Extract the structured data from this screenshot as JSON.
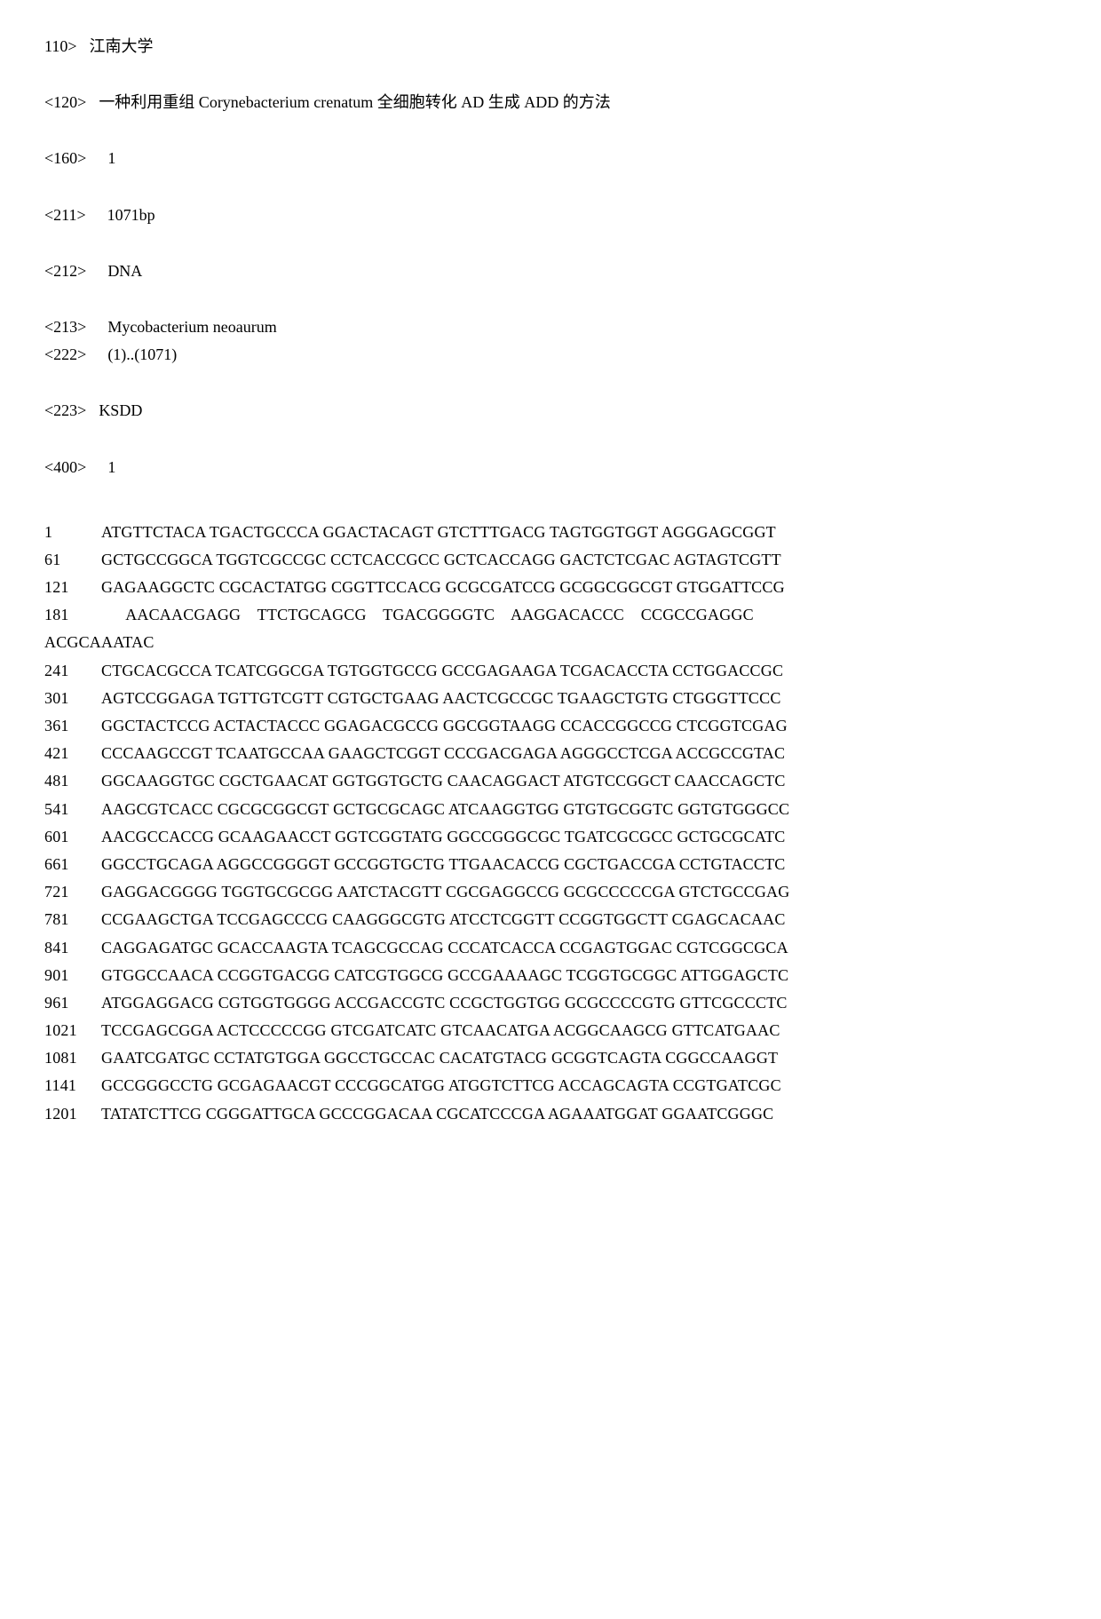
{
  "headers": {
    "h110": {
      "tag": "110>",
      "value": "江南大学"
    },
    "h120": {
      "tag": "<120>",
      "value": "一种利用重组 Corynebacterium crenatum 全细胞转化 AD 生成 ADD 的方法"
    },
    "h160": {
      "tag": "<160>",
      "value": "1"
    },
    "h211": {
      "tag": "<211>",
      "value": "1071bp"
    },
    "h212": {
      "tag": "<212>",
      "value": "DNA"
    },
    "h213": {
      "tag": "<213>",
      "value": "Mycobacterium neoaurum"
    },
    "h222": {
      "tag": "<222>",
      "value": "(1)..(1071)"
    },
    "h223": {
      "tag": "<223>",
      "value": "KSDD"
    },
    "h400": {
      "tag": "<400>",
      "value": "1"
    }
  },
  "sequence_rows": [
    {
      "pos": "1",
      "seq": "ATGTTCTACA TGACTGCCCA GGACTACAGT GTCTTTGACG TAGTGGTGGT AGGGAGCGGT"
    },
    {
      "pos": "61",
      "seq": "GCTGCCGGCA TGGTCGCCGC CCTCACCGCC GCTCACCAGG GACTCTCGAC AGTAGTCGTT"
    },
    {
      "pos": "121",
      "seq": "GAGAAGGCTC CGCACTATGG CGGTTCCACG GCGCGATCCG GCGGCGGCGT GTGGATTCCG"
    },
    {
      "pos": "181",
      "seq": "AACAACGAGG    TTCTGCAGCG    TGACGGGGTC    AAGGACACCC    CCGCCGAGGC",
      "wrap_indent": true,
      "wrap_tail": "ACGCAAATAC"
    },
    {
      "pos": "241",
      "seq": "CTGCACGCCA TCATCGGCGA TGTGGTGCCG GCCGAGAAGA TCGACACCTA CCTGGACCGC"
    },
    {
      "pos": "301",
      "seq": "AGTCCGGAGA TGTTGTCGTT CGTGCTGAAG AACTCGCCGC TGAAGCTGTG CTGGGTTCCC"
    },
    {
      "pos": "361",
      "seq": "GGCTACTCCG ACTACTACCC GGAGACGCCG GGCGGTAAGG CCACCGGCCG CTCGGTCGAG"
    },
    {
      "pos": "421",
      "seq": "CCCAAGCCGT TCAATGCCAA GAAGCTCGGT CCCGACGAGA AGGGCCTCGA ACCGCCGTAC"
    },
    {
      "pos": "481",
      "seq": "GGCAAGGTGC CGCTGAACAT GGTGGTGCTG CAACAGGACT ATGTCCGGCT CAACCAGCTC"
    },
    {
      "pos": "541",
      "seq": "AAGCGTCACC CGCGCGGCGT GCTGCGCAGC ATCAAGGTGG GTGTGCGGTC GGTGTGGGCC"
    },
    {
      "pos": "601",
      "seq": "AACGCCACCG GCAAGAACCT GGTCGGTATG GGCCGGGCGC TGATCGCGCC GCTGCGCATC"
    },
    {
      "pos": "661",
      "seq": "GGCCTGCAGA AGGCCGGGGT GCCGGTGCTG TTGAACACCG CGCTGACCGA CCTGTACCTC"
    },
    {
      "pos": "721",
      "seq": "GAGGACGGGG TGGTGCGCGG AATCTACGTT CGCGAGGCCG GCGCCCCCGA GTCTGCCGAG"
    },
    {
      "pos": "781",
      "seq": "CCGAAGCTGA TCCGAGCCCG CAAGGGCGTG ATCCTCGGTT CCGGTGGCTT CGAGCACAAC"
    },
    {
      "pos": "841",
      "seq": "CAGGAGATGC GCACCAAGTA TCAGCGCCAG CCCATCACCA CCGAGTGGAC CGTCGGCGCA"
    },
    {
      "pos": "901",
      "seq": "GTGGCCAACA CCGGTGACGG CATCGTGGCG GCCGAAAAGC TCGGTGCGGC ATTGGAGCTC"
    },
    {
      "pos": "961",
      "seq": "ATGGAGGACG CGTGGTGGGG ACCGACCGTC CCGCTGGTGG GCGCCCCGTG GTTCGCCCTC"
    },
    {
      "pos": "1021",
      "seq": "TCCGAGCGGA ACTCCCCCGG GTCGATCATC GTCAACATGA ACGGCAAGCG GTTCATGAAC"
    },
    {
      "pos": "1081",
      "seq": "GAATCGATGC CCTATGTGGA GGCCTGCCAC CACATGTACG GCGGTCAGTA CGGCCAAGGT"
    },
    {
      "pos": "1141",
      "seq": "GCCGGGCCTG GCGAGAACGT CCCGGCATGG ATGGTCTTCG ACCAGCAGTA CCGTGATCGC"
    },
    {
      "pos": "1201",
      "seq": "TATATCTTCG CGGGATTGCA GCCCGGACAA CGCATCCCGA AGAAATGGAT GGAATCGGGC"
    }
  ]
}
